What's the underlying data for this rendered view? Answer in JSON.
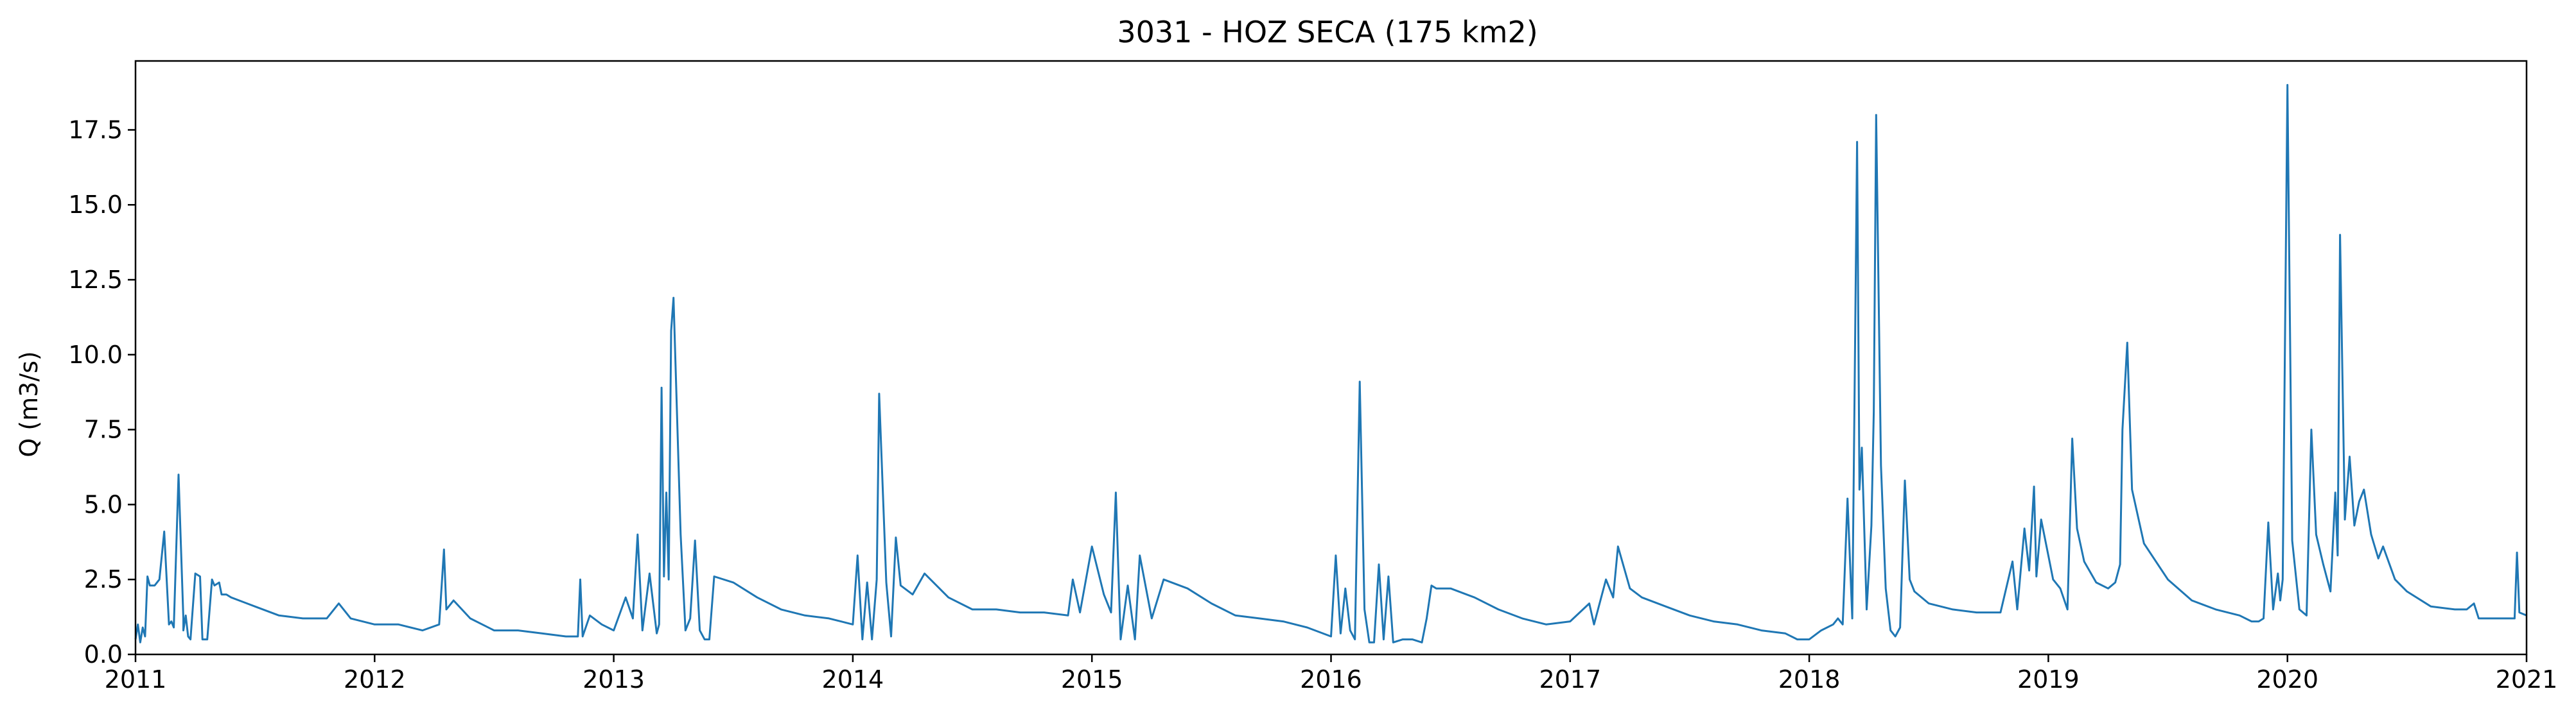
{
  "chart_data": {
    "type": "line",
    "title": "3031 - HOZ SECA (175 km2)",
    "xlabel": "",
    "ylabel": "Q (m3/s)",
    "xlim": [
      2011,
      2021
    ],
    "ylim": [
      0,
      19.8
    ],
    "x_ticks": [
      "2011",
      "2012",
      "2013",
      "2014",
      "2015",
      "2016",
      "2017",
      "2018",
      "2019",
      "2020",
      "2021"
    ],
    "y_ticks": [
      "0.0",
      "2.5",
      "5.0",
      "7.5",
      "10.0",
      "12.5",
      "15.0",
      "17.5"
    ],
    "grid": false,
    "color": "#1f77b4",
    "series": [
      {
        "x": [
          2011.0,
          2011.01,
          2011.02,
          2011.03,
          2011.04,
          2011.05,
          2011.06,
          2011.08,
          2011.1,
          2011.12,
          2011.14,
          2011.15,
          2011.16,
          2011.18,
          2011.2,
          2011.2,
          2011.21,
          2011.22,
          2011.23,
          2011.25,
          2011.27,
          2011.28,
          2011.3,
          2011.32,
          2011.33,
          2011.35,
          2011.36,
          2011.38,
          2011.4,
          2011.5,
          2011.6,
          2011.7,
          2011.8,
          2011.85,
          2011.9,
          2012.0,
          2012.1,
          2012.2,
          2012.27,
          2012.29,
          2012.3,
          2012.33,
          2012.4,
          2012.5,
          2012.6,
          2012.7,
          2012.8,
          2012.85,
          2012.86,
          2012.87,
          2012.9,
          2012.95,
          2013.0,
          2013.05,
          2013.08,
          2013.1,
          2013.12,
          2013.15,
          2013.18,
          2013.19,
          2013.2,
          2013.21,
          2013.22,
          2013.23,
          2013.24,
          2013.25,
          2013.28,
          2013.3,
          2013.32,
          2013.34,
          2013.36,
          2013.38,
          2013.4,
          2013.42,
          2013.5,
          2013.6,
          2013.7,
          2013.8,
          2013.9,
          2013.95,
          2014.0,
          2014.02,
          2014.04,
          2014.06,
          2014.08,
          2014.1,
          2014.11,
          2014.12,
          2014.14,
          2014.16,
          2014.18,
          2014.2,
          2014.25,
          2014.3,
          2014.4,
          2014.5,
          2014.6,
          2014.7,
          2014.8,
          2014.9,
          2014.92,
          2014.95,
          2015.0,
          2015.05,
          2015.08,
          2015.1,
          2015.12,
          2015.15,
          2015.18,
          2015.2,
          2015.25,
          2015.3,
          2015.4,
          2015.5,
          2015.6,
          2015.7,
          2015.8,
          2015.9,
          2016.0,
          2016.02,
          2016.04,
          2016.06,
          2016.08,
          2016.1,
          2016.12,
          2016.14,
          2016.16,
          2016.18,
          2016.2,
          2016.22,
          2016.24,
          2016.26,
          2016.3,
          2016.34,
          2016.38,
          2016.4,
          2016.42,
          2016.44,
          2016.5,
          2016.6,
          2016.7,
          2016.8,
          2016.9,
          2017.0,
          2017.08,
          2017.1,
          2017.15,
          2017.18,
          2017.2,
          2017.25,
          2017.3,
          2017.4,
          2017.5,
          2017.6,
          2017.7,
          2017.8,
          2017.9,
          2017.95,
          2018.0,
          2018.05,
          2018.1,
          2018.12,
          2018.14,
          2018.16,
          2018.18,
          2018.19,
          2018.2,
          2018.21,
          2018.22,
          2018.24,
          2018.26,
          2018.27,
          2018.28,
          2018.3,
          2018.32,
          2018.34,
          2018.36,
          2018.38,
          2018.4,
          2018.42,
          2018.44,
          2018.5,
          2018.6,
          2018.7,
          2018.8,
          2018.85,
          2018.87,
          2018.9,
          2018.92,
          2018.94,
          2018.95,
          2018.97,
          2019.0,
          2019.02,
          2019.05,
          2019.08,
          2019.1,
          2019.12,
          2019.15,
          2019.2,
          2019.25,
          2019.28,
          2019.3,
          2019.31,
          2019.33,
          2019.35,
          2019.4,
          2019.5,
          2019.6,
          2019.7,
          2019.8,
          2019.85,
          2019.88,
          2019.9,
          2019.92,
          2019.94,
          2019.96,
          2019.97,
          2019.98,
          2020.0,
          2020.02,
          2020.05,
          2020.08,
          2020.1,
          2020.12,
          2020.15,
          2020.18,
          2020.2,
          2020.21,
          2020.22,
          2020.24,
          2020.26,
          2020.28,
          2020.3,
          2020.32,
          2020.35,
          2020.38,
          2020.4,
          2020.45,
          2020.5,
          2020.6,
          2020.7,
          2020.75,
          2020.78,
          2020.8,
          2020.9,
          2020.95,
          2020.96,
          2020.97,
          2021.0
        ],
        "y": [
          0.5,
          1.0,
          0.4,
          0.9,
          0.6,
          2.6,
          2.3,
          2.3,
          2.5,
          4.1,
          1.0,
          1.1,
          0.9,
          6.0,
          1.2,
          0.8,
          1.3,
          0.6,
          0.5,
          2.7,
          2.6,
          0.5,
          0.5,
          2.5,
          2.3,
          2.4,
          2.0,
          2.0,
          1.9,
          1.6,
          1.3,
          1.2,
          1.2,
          1.7,
          1.2,
          1.0,
          1.0,
          0.8,
          1.0,
          3.5,
          1.5,
          1.8,
          1.2,
          0.8,
          0.8,
          0.7,
          0.6,
          0.6,
          2.5,
          0.6,
          1.3,
          1.0,
          0.8,
          1.9,
          1.2,
          4.0,
          0.8,
          2.7,
          0.7,
          1.0,
          8.9,
          2.6,
          5.4,
          2.5,
          10.8,
          11.9,
          4.0,
          0.8,
          1.2,
          3.8,
          0.8,
          0.5,
          0.5,
          2.6,
          2.4,
          1.9,
          1.5,
          1.3,
          1.2,
          1.1,
          1.0,
          3.3,
          0.5,
          2.4,
          0.5,
          2.5,
          8.7,
          6.6,
          2.4,
          0.6,
          3.9,
          2.3,
          2.0,
          2.7,
          1.9,
          1.5,
          1.5,
          1.4,
          1.4,
          1.3,
          2.5,
          1.4,
          3.6,
          2.0,
          1.4,
          5.4,
          0.5,
          2.3,
          0.5,
          3.3,
          1.2,
          2.5,
          2.2,
          1.7,
          1.3,
          1.2,
          1.1,
          0.9,
          0.6,
          3.3,
          0.7,
          2.2,
          0.8,
          0.5,
          9.1,
          1.5,
          0.4,
          0.4,
          3.0,
          0.5,
          2.6,
          0.4,
          0.5,
          0.5,
          0.4,
          1.2,
          2.3,
          2.2,
          2.2,
          1.9,
          1.5,
          1.2,
          1.0,
          1.1,
          1.7,
          1.0,
          2.5,
          1.9,
          3.6,
          2.2,
          1.9,
          1.6,
          1.3,
          1.1,
          1.0,
          0.8,
          0.7,
          0.5,
          0.5,
          0.8,
          1.0,
          1.2,
          1.0,
          5.2,
          1.2,
          8.9,
          17.1,
          5.5,
          6.9,
          1.5,
          4.3,
          8.1,
          18.0,
          6.3,
          2.2,
          0.8,
          0.6,
          0.9,
          5.8,
          2.5,
          2.1,
          1.7,
          1.5,
          1.4,
          1.4,
          3.1,
          1.5,
          4.2,
          2.8,
          5.6,
          2.6,
          4.5,
          3.3,
          2.5,
          2.2,
          1.5,
          7.2,
          4.2,
          3.1,
          2.4,
          2.2,
          2.4,
          3.0,
          7.5,
          10.4,
          5.5,
          3.7,
          2.5,
          1.8,
          1.5,
          1.3,
          1.1,
          1.1,
          1.2,
          4.4,
          1.5,
          2.7,
          1.8,
          2.5,
          19.0,
          3.8,
          1.5,
          1.3,
          7.5,
          4.0,
          3.0,
          2.1,
          5.4,
          3.3,
          14.0,
          4.5,
          6.6,
          4.3,
          5.1,
          5.5,
          4.0,
          3.2,
          3.6,
          2.5,
          2.1,
          1.6,
          1.5,
          1.5,
          1.7,
          1.2,
          1.2,
          1.2,
          3.4,
          1.4,
          1.3
        ]
      }
    ]
  }
}
